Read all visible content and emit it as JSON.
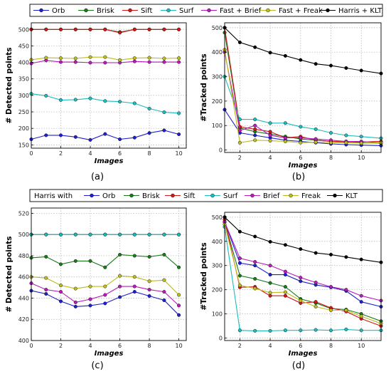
{
  "legend_top": {
    "entries": [
      {
        "label": "Orb",
        "color": "#1f1fd0"
      },
      {
        "label": "Brisk",
        "color": "#1b7a1b"
      },
      {
        "label": "Sift",
        "color": "#d01818"
      },
      {
        "label": "Surf",
        "color": "#1cbcbc"
      },
      {
        "label": "Fast + Brief",
        "color": "#b81cb8"
      },
      {
        "label": "Fast + Freak",
        "color": "#bcbc1c"
      },
      {
        "label": "Harris + KLT",
        "color": "#000000"
      }
    ]
  },
  "legend_bottom": {
    "prefix": "Harris with",
    "entries": [
      {
        "label": "Orb",
        "color": "#1f1fd0"
      },
      {
        "label": "Brisk",
        "color": "#1b7a1b"
      },
      {
        "label": "Sift",
        "color": "#d01818"
      },
      {
        "label": "Surf",
        "color": "#1cbcbc"
      },
      {
        "label": "Brief",
        "color": "#b81cb8"
      },
      {
        "label": "Freak",
        "color": "#bcbc1c"
      },
      {
        "label": "KLT",
        "color": "#000000"
      }
    ]
  },
  "chart_data": [
    {
      "panel": "(a)",
      "type": "line",
      "xlabel": "Images",
      "ylabel": "# Detected points",
      "xlim": [
        0,
        10.5
      ],
      "ylim": [
        140,
        520
      ],
      "xticks": [
        0,
        2,
        4,
        6,
        8,
        10
      ],
      "yticks": [
        150,
        200,
        250,
        300,
        350,
        400,
        450,
        500
      ],
      "grid": true,
      "x": [
        0,
        1,
        2,
        3,
        4,
        5,
        6,
        7,
        8,
        9,
        10
      ],
      "series": [
        {
          "name": "Orb",
          "color": "#1f1fd0",
          "values": [
            167,
            179,
            179,
            174,
            165,
            183,
            167,
            172,
            186,
            194,
            182
          ]
        },
        {
          "name": "Brisk",
          "color": "#1b7a1b",
          "values": [
            500,
            500,
            500,
            500,
            500,
            500,
            492,
            500,
            500,
            500,
            500
          ]
        },
        {
          "name": "Sift",
          "color": "#d01818",
          "values": [
            500,
            500,
            500,
            500,
            500,
            500,
            490,
            500,
            500,
            500,
            500
          ]
        },
        {
          "name": "Surf",
          "color": "#1cbcbc",
          "values": [
            305,
            299,
            286,
            287,
            291,
            283,
            281,
            276,
            260,
            249,
            246
          ]
        },
        {
          "name": "Fast + Brief",
          "color": "#b81cb8",
          "values": [
            397,
            406,
            401,
            401,
            399,
            399,
            399,
            403,
            401,
            401,
            401
          ]
        },
        {
          "name": "Fast + Freak",
          "color": "#bcbc1c",
          "values": [
            408,
            414,
            413,
            412,
            416,
            416,
            407,
            413,
            414,
            412,
            413
          ]
        }
      ]
    },
    {
      "panel": "(b)",
      "type": "line",
      "xlabel": "Images",
      "ylabel": "#Tracked points",
      "xlim": [
        1,
        11.3
      ],
      "ylim": [
        -10,
        520
      ],
      "xticks": [
        2,
        4,
        6,
        8,
        10
      ],
      "yticks": [
        0,
        100,
        200,
        300,
        400,
        500
      ],
      "grid": true,
      "x": [
        1,
        2,
        3,
        4,
        5,
        6,
        7,
        8,
        9,
        10,
        11.3
      ],
      "series": [
        {
          "name": "Orb",
          "color": "#1f1fd0",
          "values": [
            165,
            70,
            60,
            50,
            40,
            35,
            30,
            25,
            22,
            20,
            18
          ]
        },
        {
          "name": "Brisk",
          "color": "#1b7a1b",
          "values": [
            480,
            90,
            75,
            65,
            55,
            45,
            40,
            35,
            32,
            30,
            28
          ]
        },
        {
          "name": "Sift",
          "color": "#d01818",
          "values": [
            500,
            95,
            85,
            75,
            50,
            55,
            40,
            35,
            35,
            33,
            35
          ]
        },
        {
          "name": "Surf",
          "color": "#1cbcbc",
          "values": [
            300,
            125,
            125,
            110,
            110,
            95,
            85,
            70,
            60,
            55,
            48
          ]
        },
        {
          "name": "Fast + Brief",
          "color": "#b81cb8",
          "values": [
            400,
            80,
            100,
            60,
            50,
            50,
            45,
            40,
            35,
            35,
            30
          ]
        },
        {
          "name": "Fast + Freak",
          "color": "#bcbc1c",
          "values": [
            410,
            30,
            40,
            38,
            35,
            30,
            32,
            30,
            30,
            28,
            30
          ]
        },
        {
          "name": "Harris + KLT",
          "color": "#000000",
          "values": [
            500,
            440,
            420,
            398,
            385,
            368,
            352,
            345,
            335,
            325,
            313
          ]
        }
      ]
    },
    {
      "panel": "(c)",
      "type": "line",
      "xlabel": "Images",
      "ylabel": "# Detected points",
      "xlim": [
        0,
        10.5
      ],
      "ylim": [
        400,
        525
      ],
      "xticks": [
        0,
        2,
        4,
        6,
        8,
        10
      ],
      "yticks": [
        400,
        420,
        440,
        460,
        480,
        500,
        520
      ],
      "grid": true,
      "x": [
        0,
        1,
        2,
        3,
        4,
        5,
        6,
        7,
        8,
        9,
        10
      ],
      "series": [
        {
          "name": "Orb",
          "color": "#1f1fd0",
          "values": [
            447,
            444,
            437,
            432,
            433,
            435,
            441,
            446,
            442,
            438,
            424
          ]
        },
        {
          "name": "Brisk",
          "color": "#1b7a1b",
          "values": [
            478,
            479,
            472,
            475,
            475,
            469,
            481,
            480,
            479,
            481,
            469
          ]
        },
        {
          "name": "Sift",
          "color": "#d01818",
          "values": [
            500,
            500,
            500,
            500,
            500,
            500,
            500,
            500,
            500,
            500,
            500
          ]
        },
        {
          "name": "Surf",
          "color": "#1cbcbc",
          "values": [
            500,
            500,
            500,
            500,
            500,
            500,
            500,
            500,
            500,
            500,
            500
          ]
        },
        {
          "name": "Brief",
          "color": "#b81cb8",
          "values": [
            454,
            448,
            446,
            436,
            439,
            443,
            451,
            451,
            448,
            446,
            433
          ]
        },
        {
          "name": "Freak",
          "color": "#bcbc1c",
          "values": [
            460,
            459,
            452,
            449,
            451,
            451,
            461,
            460,
            456,
            457,
            443
          ]
        }
      ]
    },
    {
      "panel": "(d)",
      "type": "line",
      "xlabel": "Images",
      "ylabel": "#Tracked points",
      "xlim": [
        1,
        11.3
      ],
      "ylim": [
        -10,
        520
      ],
      "xticks": [
        2,
        4,
        6,
        8,
        10
      ],
      "yticks": [
        0,
        100,
        200,
        300,
        400,
        500
      ],
      "grid": true,
      "x": [
        1,
        2,
        3,
        4,
        5,
        6,
        7,
        8,
        9,
        10,
        11.3
      ],
      "series": [
        {
          "name": "Orb",
          "color": "#1f1fd0",
          "values": [
            480,
            310,
            300,
            262,
            262,
            235,
            220,
            210,
            195,
            150,
            130
          ]
        },
        {
          "name": "Brisk",
          "color": "#1b7a1b",
          "values": [
            480,
            258,
            245,
            228,
            212,
            162,
            145,
            122,
            118,
            100,
            70
          ]
        },
        {
          "name": "Sift",
          "color": "#d01818",
          "values": [
            490,
            210,
            212,
            175,
            175,
            145,
            150,
            125,
            110,
            80,
            50
          ]
        },
        {
          "name": "Surf",
          "color": "#1cbcbc",
          "values": [
            460,
            32,
            30,
            30,
            32,
            32,
            34,
            32,
            36,
            32,
            32
          ]
        },
        {
          "name": "Brief",
          "color": "#b81cb8",
          "values": [
            480,
            330,
            315,
            300,
            275,
            250,
            230,
            212,
            200,
            175,
            155
          ]
        },
        {
          "name": "Freak",
          "color": "#bcbc1c",
          "values": [
            470,
            218,
            205,
            188,
            190,
            155,
            130,
            115,
            115,
            90,
            60
          ]
        },
        {
          "name": "KLT",
          "color": "#000000",
          "values": [
            500,
            440,
            420,
            398,
            385,
            368,
            352,
            345,
            335,
            325,
            313
          ]
        }
      ]
    }
  ],
  "panel_labels": [
    "(a)",
    "(b)",
    "(c)",
    "(d)"
  ]
}
